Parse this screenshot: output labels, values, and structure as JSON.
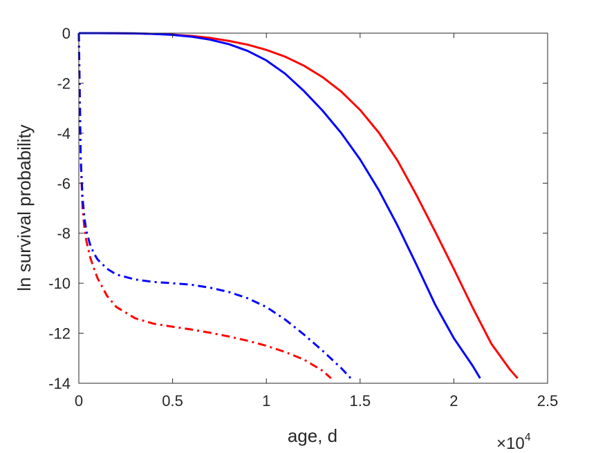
{
  "chart_data": {
    "type": "line",
    "xlabel": "age, d",
    "ylabel": "ln survival probability",
    "x_multiplier": {
      "times": "×",
      "base": "10",
      "exponent": "4"
    },
    "xlim": [
      0,
      25000
    ],
    "ylim": [
      -14,
      0
    ],
    "xticks": [
      0,
      5000,
      10000,
      15000,
      20000,
      25000
    ],
    "xtick_labels": [
      "0",
      "0.5",
      "1",
      "1.5",
      "2",
      "2.5"
    ],
    "yticks": [
      0,
      -2,
      -4,
      -6,
      -8,
      -10,
      -12,
      -14
    ],
    "ytick_labels": [
      "0",
      "-2",
      "-4",
      "-6",
      "-8",
      "-10",
      "-12",
      "-14"
    ],
    "grid": false,
    "legend": "none",
    "series": [
      {
        "color": "#ff0000",
        "style": "solid",
        "x": [
          0,
          1000,
          2000,
          3000,
          4000,
          5000,
          6000,
          7000,
          8000,
          9000,
          10000,
          11000,
          12000,
          13000,
          14000,
          15000,
          16000,
          17000,
          18000,
          19000,
          20000,
          21000,
          22000,
          23000,
          23400
        ],
        "y": [
          0,
          -0.001,
          -0.003,
          -0.01,
          -0.03,
          -0.06,
          -0.11,
          -0.19,
          -0.31,
          -0.46,
          -0.67,
          -0.94,
          -1.3,
          -1.76,
          -2.34,
          -3.07,
          -3.98,
          -5.1,
          -6.47,
          -7.93,
          -9.43,
          -10.97,
          -12.42,
          -13.46,
          -13.8
        ]
      },
      {
        "color": "#0000ff",
        "style": "solid",
        "x": [
          0,
          1000,
          2000,
          3000,
          4000,
          5000,
          6000,
          7000,
          8000,
          9000,
          10000,
          11000,
          12000,
          13000,
          14000,
          15000,
          16000,
          17000,
          18000,
          19000,
          20000,
          21000,
          21400
        ],
        "y": [
          0,
          -0.001,
          -0.004,
          -0.01,
          -0.03,
          -0.07,
          -0.14,
          -0.26,
          -0.44,
          -0.71,
          -1.09,
          -1.62,
          -2.31,
          -3.1,
          -4.0,
          -5.05,
          -6.28,
          -7.7,
          -9.25,
          -10.85,
          -12.2,
          -13.3,
          -13.8
        ]
      },
      {
        "color": "#ff0000",
        "style": "dashdot",
        "x": [
          0,
          50,
          100,
          200,
          300,
          400,
          600,
          800,
          1000,
          1500,
          2000,
          3000,
          4000,
          5000,
          6000,
          7000,
          8000,
          9000,
          10000,
          11000,
          12000,
          13000,
          13450
        ],
        "y": [
          0,
          -2.5,
          -5.0,
          -7.0,
          -7.8,
          -8.3,
          -8.95,
          -9.4,
          -9.8,
          -10.5,
          -10.95,
          -11.4,
          -11.62,
          -11.74,
          -11.85,
          -11.98,
          -12.13,
          -12.3,
          -12.5,
          -12.75,
          -13.05,
          -13.5,
          -13.8
        ]
      },
      {
        "color": "#0000ff",
        "style": "dashdot",
        "x": [
          0,
          50,
          100,
          200,
          300,
          400,
          600,
          800,
          1000,
          1500,
          2000,
          3000,
          4000,
          5000,
          6000,
          7000,
          8000,
          9000,
          10000,
          11000,
          12000,
          13000,
          14000,
          14500
        ],
        "y": [
          0,
          -2.5,
          -5.0,
          -6.6,
          -7.4,
          -7.9,
          -8.45,
          -8.8,
          -9.05,
          -9.42,
          -9.65,
          -9.85,
          -9.95,
          -10.0,
          -10.06,
          -10.18,
          -10.35,
          -10.6,
          -10.95,
          -11.45,
          -12.05,
          -12.7,
          -13.4,
          -13.8
        ]
      }
    ]
  }
}
